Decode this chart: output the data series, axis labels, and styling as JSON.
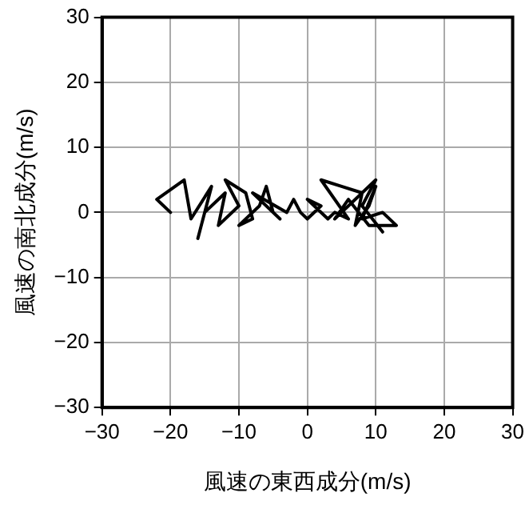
{
  "chart_data": {
    "type": "line",
    "xlabel": "風速の東西成分(m/s)",
    "ylabel": "風速の南北成分(m/s)",
    "x": [
      -20,
      -22,
      -18,
      -17,
      -14,
      -16,
      -15,
      -12,
      -13,
      -10,
      -12,
      -9,
      -8,
      -10,
      -7,
      -6,
      -5,
      -4,
      -8,
      -3,
      -2,
      -1,
      0,
      2,
      0,
      3,
      4,
      6,
      2,
      5,
      8,
      7,
      9,
      10,
      8,
      11,
      13,
      9,
      6,
      4,
      10,
      8,
      11
    ],
    "series": [
      {
        "color": "#000000",
        "values": [
          0,
          2,
          5,
          -1,
          4,
          -4,
          0,
          3,
          -2,
          1,
          5,
          3,
          -1,
          -2,
          1,
          4,
          0,
          -1,
          3,
          0,
          2,
          0,
          -1,
          1,
          2,
          -1,
          0,
          -1,
          5,
          4,
          3,
          -2,
          1,
          4,
          -1,
          0,
          -2,
          -2,
          2,
          -1,
          5,
          1,
          -3
        ]
      }
    ],
    "xlim": [
      -30,
      30
    ],
    "ylim": [
      -30,
      30
    ],
    "xticks": [
      {
        "value": -30,
        "label": "−30"
      },
      {
        "value": -20,
        "label": "−20"
      },
      {
        "value": -10,
        "label": "−10"
      },
      0,
      10,
      20,
      30
    ],
    "yticks": [
      {
        "value": -30,
        "label": "−30"
      },
      {
        "value": -20,
        "label": "−20"
      },
      {
        "value": -10,
        "label": "−10"
      },
      0,
      10,
      20,
      30
    ],
    "grid": true,
    "marker": "none",
    "line_style": "solid",
    "legend": false
  }
}
